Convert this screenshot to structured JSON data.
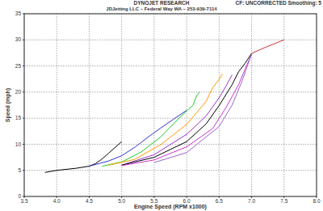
{
  "chart_data": {
    "type": "line",
    "title": "DYNOJET RESEARCH",
    "subtitle": "JDJetting LLC – Federal Way WA – 253-939-7114",
    "annotations": [
      "CF: UNCORRECTED  Smoothing: 5"
    ],
    "x_label": "Engine Speed (RPM x1000)",
    "y_label": "Speed (mph)",
    "xlim": [
      3.5,
      8.0
    ],
    "xticks": [
      3.5,
      {
        "value": 4,
        "label": "4.0"
      },
      4.5,
      {
        "value": 5,
        "label": "5.0"
      },
      5.5,
      {
        "value": 6,
        "label": "6.0"
      },
      6.5,
      {
        "value": 7,
        "label": "7.0"
      },
      7.5,
      {
        "value": 8,
        "label": "8.0"
      }
    ],
    "ylim": [
      0,
      35
    ],
    "yticks": [
      0,
      5,
      10,
      15,
      20,
      25,
      30,
      35
    ],
    "grid": true,
    "series": [
      {
        "color": "#000000",
        "x": [
          3.82,
          4.0,
          4.3,
          4.5,
          4.6,
          4.7,
          4.8,
          4.9,
          5.0
        ],
        "values": [
          4.6,
          5.0,
          5.4,
          5.8,
          6.3,
          7.2,
          8.3,
          9.4,
          10.5
        ]
      },
      {
        "color": "#3333cc",
        "x": [
          4.5,
          4.8,
          5.0,
          5.2,
          5.4,
          5.6,
          5.8,
          6.0
        ],
        "values": [
          5.8,
          6.8,
          7.8,
          9.4,
          11.3,
          13.1,
          14.8,
          16.5
        ]
      },
      {
        "color": "#22cc22",
        "x": [
          4.7,
          5.0,
          5.3,
          5.6,
          5.9,
          6.1,
          6.15,
          6.2
        ],
        "values": [
          5.8,
          6.6,
          8.5,
          11.4,
          15.2,
          17.5,
          19.2,
          20.0
        ]
      },
      {
        "color": "#ff9900",
        "x": [
          4.8,
          5.2,
          5.6,
          6.0,
          6.3,
          6.4,
          6.5,
          6.55
        ],
        "values": [
          6.0,
          7.1,
          9.9,
          13.8,
          18.2,
          20.8,
          22.4,
          23.5
        ]
      },
      {
        "color": "#9933cc",
        "x": [
          5.0,
          5.5,
          6.0,
          6.3,
          6.5,
          6.6,
          6.7
        ],
        "values": [
          6.0,
          8.0,
          11.9,
          15.4,
          18.9,
          21.0,
          23.3
        ]
      },
      {
        "color": "#000000",
        "x": [
          5.0,
          5.5,
          6.0,
          6.3,
          6.5,
          6.7,
          6.8,
          6.9,
          7.0
        ],
        "values": [
          6.0,
          7.5,
          10.5,
          13.9,
          17.4,
          21.4,
          23.9,
          25.5,
          27.4
        ]
      },
      {
        "color": "#cc33cc",
        "x": [
          5.0,
          5.5,
          6.0,
          6.4,
          6.6,
          6.8,
          6.9,
          7.0
        ],
        "values": [
          5.9,
          7.0,
          9.5,
          13.0,
          16.9,
          21.4,
          24.4,
          27.2
        ]
      },
      {
        "color": "#9966cc",
        "x": [
          5.5,
          6.0,
          6.5,
          6.7,
          6.85,
          7.0
        ],
        "values": [
          6.5,
          8.4,
          13.4,
          17.5,
          22.0,
          27.3
        ]
      },
      {
        "color": "#cc3333",
        "x": [
          7.0,
          7.2,
          7.5
        ],
        "values": [
          27.4,
          28.5,
          30.0
        ]
      }
    ]
  }
}
